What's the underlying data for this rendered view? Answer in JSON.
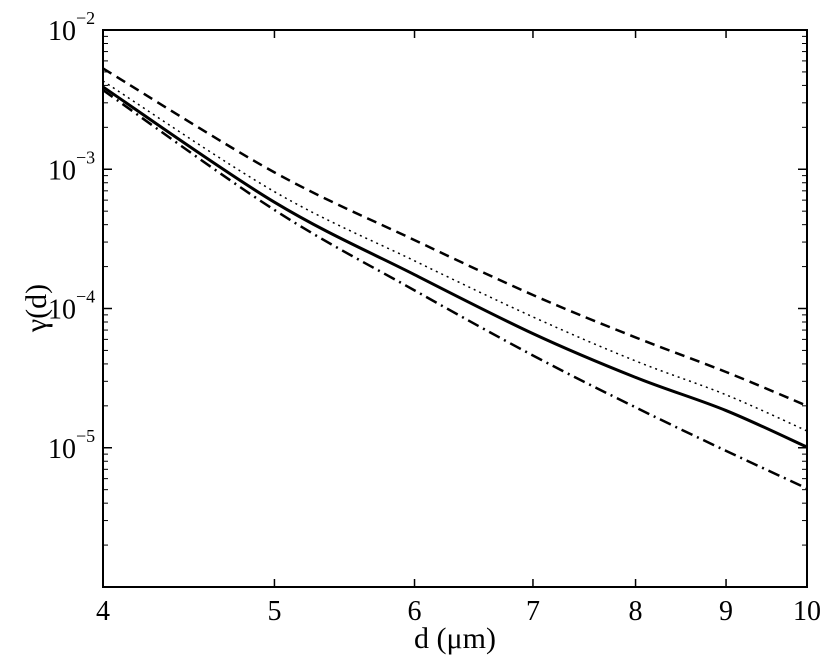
{
  "chart_data": {
    "type": "line",
    "title": "",
    "xlabel": "d (μm)",
    "ylabel": "γ(d)",
    "x_scale": "log",
    "y_scale": "log",
    "xlim": [
      4,
      10
    ],
    "ylim": [
      1e-06,
      0.01
    ],
    "x_ticks": [
      {
        "value": 4,
        "label": "4"
      },
      {
        "value": 5,
        "label": "5"
      },
      {
        "value": 6,
        "label": "6"
      },
      {
        "value": 7,
        "label": "7"
      },
      {
        "value": 8,
        "label": "8"
      },
      {
        "value": 9,
        "label": "9"
      },
      {
        "value": 10,
        "label": "10"
      }
    ],
    "y_ticks": [
      {
        "value": 0.01,
        "base": "10",
        "exp": "−2"
      },
      {
        "value": 0.001,
        "base": "10",
        "exp": "−3"
      },
      {
        "value": 0.0001,
        "base": "10",
        "exp": "−4"
      },
      {
        "value": 1e-05,
        "base": "10",
        "exp": "−5"
      }
    ],
    "grid": false,
    "legend": "none",
    "series": [
      {
        "style": "solid",
        "x": [
          4,
          5,
          6,
          7,
          8,
          9,
          10
        ],
        "y": [
          0.0039,
          0.00058,
          0.000175,
          6.6e-05,
          3.2e-05,
          1.85e-05,
          1.01e-05
        ]
      },
      {
        "style": "dashed",
        "x": [
          4,
          5,
          6,
          7,
          8,
          9,
          10
        ],
        "y": [
          0.0053,
          0.00095,
          0.00031,
          0.000125,
          6.2e-05,
          3.5e-05,
          2e-05
        ]
      },
      {
        "style": "dotted",
        "x": [
          4,
          5,
          6,
          7,
          8,
          9,
          10
        ],
        "y": [
          0.0043,
          0.00069,
          0.00022,
          8.7e-05,
          4.2e-05,
          2.4e-05,
          1.32e-05
        ]
      },
      {
        "style": "dashdot",
        "x": [
          4,
          5,
          6,
          7,
          8,
          9,
          10
        ],
        "y": [
          0.0037,
          0.00051,
          0.000135,
          4.6e-05,
          1.95e-05,
          9.5e-06,
          5.1e-06
        ]
      }
    ]
  }
}
